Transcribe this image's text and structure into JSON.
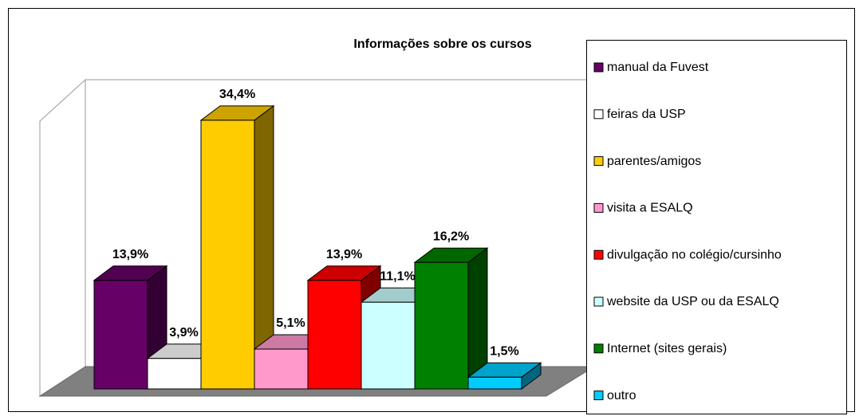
{
  "chart_data": {
    "type": "bar3d",
    "title": "Informações sobre os cursos",
    "categories": [
      "manual da Fuvest",
      "feiras da USP",
      "parentes/amigos",
      "visita a ESALQ",
      "divulgação no colégio/cursinho",
      "website da USP ou da ESALQ",
      "Internet (sites gerais)",
      "outro"
    ],
    "values": [
      13.9,
      3.9,
      34.4,
      5.1,
      13.9,
      11.1,
      16.2,
      1.5
    ],
    "value_labels": [
      "13,9%",
      "3,9%",
      "34,4%",
      "5,1%",
      "13,9%",
      "11,1%",
      "16,2%",
      "1,5%"
    ],
    "colors": [
      "#660066",
      "#ffffff",
      "#ffcc00",
      "#ff99cc",
      "#ff0000",
      "#ccffff",
      "#008000",
      "#00ccff"
    ],
    "ylim": [
      0,
      35
    ],
    "legend": "right"
  }
}
